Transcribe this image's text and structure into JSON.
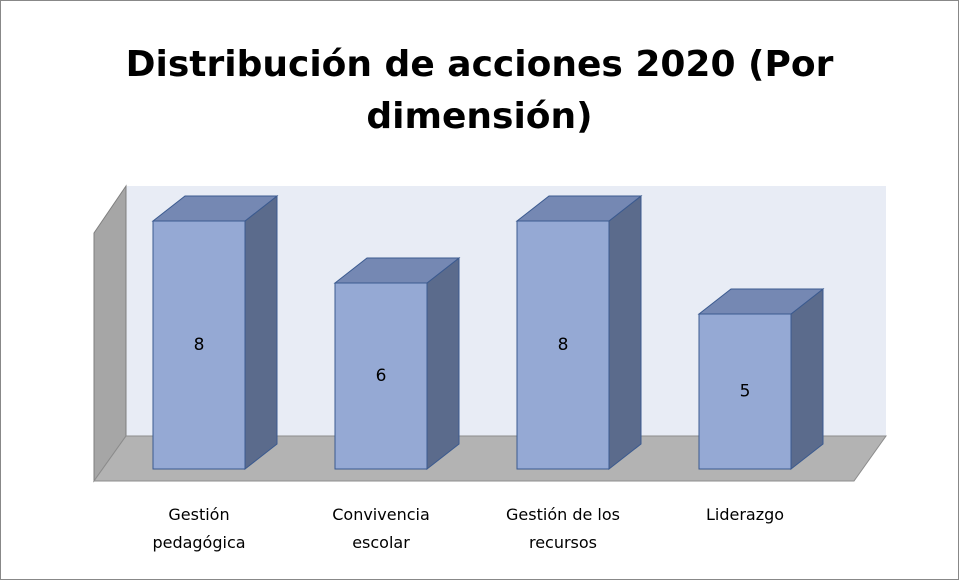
{
  "chart_data": {
    "type": "bar3d",
    "title": "Distribución de acciones 2020 (Por dimensión)",
    "categories": [
      "Gestión pedagógica",
      "Convivencia escolar",
      "Gestión de los recursos",
      "Liderazgo"
    ],
    "values": [
      8,
      6,
      8,
      5
    ],
    "color": "#95a9d4"
  }
}
